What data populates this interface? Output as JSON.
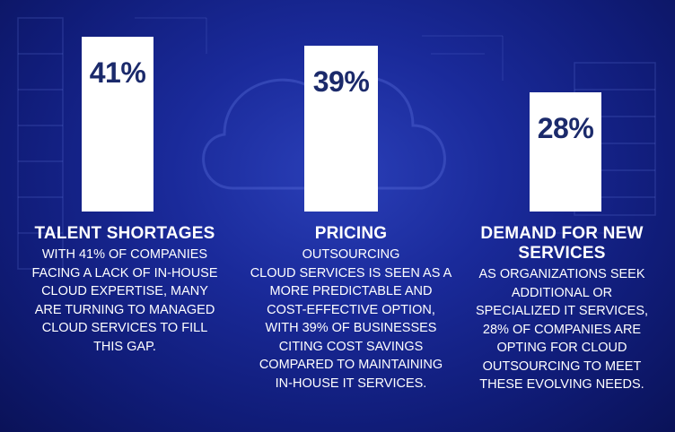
{
  "colors": {
    "background": "#1a2a9a",
    "bar": "#ffffff",
    "value_text": "#1b2a6b",
    "text": "#ffffff"
  },
  "chart_data": {
    "type": "bar",
    "categories": [
      "TALENT SHORTAGES",
      "PRICING",
      "DEMAND FOR NEW SERVICES"
    ],
    "values": [
      41,
      39,
      28
    ],
    "value_labels": [
      "41%",
      "39%",
      "28%"
    ],
    "ylim": [
      0,
      100
    ],
    "grid": false,
    "legend": "none"
  },
  "columns": [
    {
      "title": "TALENT SHORTAGES",
      "body": "WITH 41% OF COMPANIES\nFACING A LACK OF IN-HOUSE\nCLOUD EXPERTISE, MANY\nARE TURNING TO MANAGED\nCLOUD SERVICES TO FILL\nTHIS GAP."
    },
    {
      "title": "PRICING",
      "body": "OUTSOURCING\nCLOUD SERVICES IS SEEN AS A\nMORE PREDICTABLE AND\nCOST-EFFECTIVE OPTION,\nWITH 39% OF BUSINESSES\nCITING COST SAVINGS\nCOMPARED TO MAINTAINING\nIN-HOUSE IT SERVICES."
    },
    {
      "title": "DEMAND FOR NEW\nSERVICES",
      "body": "AS ORGANIZATIONS SEEK\nADDITIONAL OR\nSPECIALIZED IT SERVICES,\n28% OF COMPANIES ARE\nOPTING FOR CLOUD\nOUTSOURCING TO MEET\nTHESE EVOLVING NEEDS."
    }
  ]
}
